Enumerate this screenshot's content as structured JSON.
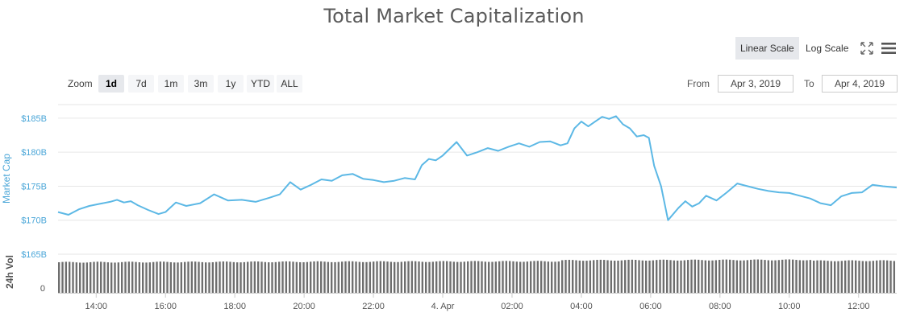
{
  "title": "Total Market Capitalization",
  "scale": {
    "linear_label": "Linear Scale",
    "log_label": "Log Scale",
    "active": "linear"
  },
  "toolbar": {
    "fullscreen_icon": "fullscreen-icon",
    "menu_icon": "menu-icon"
  },
  "zoom": {
    "label": "Zoom",
    "options": [
      "1d",
      "7d",
      "1m",
      "3m",
      "1y",
      "YTD",
      "ALL"
    ],
    "active": "1d"
  },
  "range": {
    "from_label": "From",
    "from_value": "Apr 3, 2019",
    "to_label": "To",
    "to_value": "Apr 4, 2019"
  },
  "colors": {
    "line": "#5cb8e5",
    "axis_label": "#4aa6d8",
    "volume_bar": "#6e6e6e",
    "grid": "#e6e6e6"
  },
  "chart_data": {
    "type": "line",
    "title": "Total Market Capitalization",
    "ylabel": "Market Cap",
    "ylabel2": "24h Vol",
    "y_ticks": [
      "$165B",
      "$170B",
      "$175B",
      "$180B",
      "$185B"
    ],
    "y_tick_values": [
      165,
      170,
      175,
      180,
      185
    ],
    "ylim": [
      165,
      187
    ],
    "x_ticks": [
      "14:00",
      "16:00",
      "18:00",
      "20:00",
      "22:00",
      "4. Apr",
      "02:00",
      "04:00",
      "06:00",
      "08:00",
      "10:00",
      "12:00"
    ],
    "x_tick_hours": [
      14,
      16,
      18,
      20,
      22,
      24,
      26,
      28,
      30,
      32,
      34,
      36
    ],
    "xlim_hours": [
      12.9,
      37.1
    ],
    "vol_tick": "0",
    "series": [
      {
        "x_hours": [
          12.9,
          13.2,
          13.5,
          13.8,
          14.1,
          14.4,
          14.6,
          14.8,
          15.0,
          15.2,
          15.5,
          15.8,
          16.0,
          16.3,
          16.6,
          17.0,
          17.4,
          17.8,
          18.2,
          18.6,
          19.0,
          19.3,
          19.6,
          19.9,
          20.2,
          20.5,
          20.8,
          21.1,
          21.4,
          21.7,
          22.0,
          22.3,
          22.6,
          22.9,
          23.2,
          23.4,
          23.6,
          23.8,
          24.0,
          24.2,
          24.4,
          24.7,
          25.0,
          25.3,
          25.6,
          25.9,
          26.2,
          26.5,
          26.8,
          27.1,
          27.4,
          27.6,
          27.8,
          28.0,
          28.2,
          28.4,
          28.6,
          28.8,
          29.0,
          29.2,
          29.4,
          29.6,
          29.8,
          29.95,
          30.1,
          30.3,
          30.5,
          30.8,
          31.0,
          31.2,
          31.4,
          31.6,
          31.9,
          32.2,
          32.5,
          32.8,
          33.1,
          33.4,
          33.7,
          34.0,
          34.3,
          34.6,
          34.9,
          35.2,
          35.5,
          35.8,
          36.1,
          36.4,
          36.7,
          37.1
        ],
        "values": [
          171.2,
          170.8,
          171.6,
          172.1,
          172.4,
          172.7,
          173.0,
          172.6,
          172.8,
          172.2,
          171.5,
          170.9,
          171.2,
          172.6,
          172.1,
          172.5,
          173.8,
          172.9,
          173.0,
          172.7,
          173.3,
          173.8,
          175.6,
          174.5,
          175.2,
          176.0,
          175.8,
          176.6,
          176.8,
          176.1,
          175.9,
          175.6,
          175.8,
          176.2,
          176.0,
          178.1,
          179.0,
          178.8,
          179.5,
          180.5,
          181.5,
          179.5,
          180.0,
          180.6,
          180.2,
          180.8,
          181.3,
          180.8,
          181.5,
          181.6,
          181.0,
          181.3,
          183.5,
          184.5,
          183.8,
          184.5,
          185.2,
          184.9,
          185.3,
          184.1,
          183.5,
          182.3,
          182.5,
          182.1,
          178.0,
          175.0,
          170.0,
          171.8,
          172.8,
          172.0,
          172.5,
          173.6,
          172.9,
          174.1,
          175.4,
          175.0,
          174.6,
          174.3,
          174.1,
          174.0,
          173.6,
          173.2,
          172.5,
          172.2,
          173.5,
          174.0,
          174.1,
          175.2,
          175.0,
          174.8
        ]
      }
    ],
    "volume": {
      "bar_count": 240,
      "relative_heights_note_free": true
    }
  }
}
